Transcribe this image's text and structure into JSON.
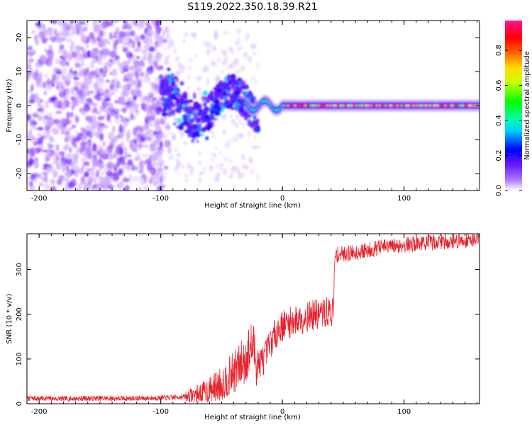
{
  "figure": {
    "title": "S119.2022.350.18.39.R21"
  },
  "chart_data": [
    {
      "type": "heatmap",
      "xlabel": "Height of straight line (km)",
      "ylabel": "Frequency (Hz)",
      "xlim": [
        -210,
        162
      ],
      "ylim": [
        -25,
        25
      ],
      "xticks": [
        -200,
        -100,
        0,
        100
      ],
      "yticks": [
        -20,
        -10,
        0,
        10,
        20
      ],
      "colorbar": {
        "label": "Normalized spectral amplitude",
        "range": [
          0,
          0.97
        ],
        "ticks": [
          "0.0",
          "0.2",
          "0.4",
          "0.6",
          "0.8"
        ],
        "colormap": [
          "#ffffff",
          "#7b2cff",
          "#0000ff",
          "#00ffff",
          "#00ff00",
          "#ffff00",
          "#ff0000",
          "#ff1493"
        ]
      },
      "description_regions": [
        {
          "x_range": [
            -210,
            -100
          ],
          "amplitude": "low",
          "pattern": "scattered noise"
        },
        {
          "x_range": [
            -100,
            -25
          ],
          "amplitude": "medium",
          "pattern": "wandering signal"
        },
        {
          "x_range": [
            0,
            162
          ],
          "amplitude": "high",
          "pattern": "narrow line at 0 Hz"
        }
      ]
    },
    {
      "type": "line",
      "xlabel": "Height of straight line (km)",
      "ylabel": "SNR (10 * v/v)",
      "xlim": [
        -210,
        162
      ],
      "ylim": [
        0,
        380
      ],
      "xticks": [
        -200,
        -100,
        0,
        100
      ],
      "yticks": [
        0,
        100,
        200,
        300
      ],
      "series": [
        {
          "color": "#e8202a",
          "x": [
            -210,
            -200,
            -180,
            -160,
            -140,
            -120,
            -100,
            -90,
            -80,
            -70,
            -60,
            -50,
            -40,
            -30,
            -25,
            -20,
            -15,
            -10,
            -5,
            0,
            10,
            20,
            30,
            40,
            42,
            43,
            44,
            50,
            60,
            70,
            80,
            90,
            100,
            110,
            120,
            130,
            140,
            150,
            160,
            162
          ],
          "y": [
            12,
            12,
            11,
            12,
            12,
            12,
            13,
            14,
            16,
            22,
            30,
            45,
            70,
            100,
            130,
            90,
            100,
            135,
            160,
            175,
            185,
            195,
            200,
            205,
            210,
            320,
            333,
            335,
            338,
            343,
            350,
            352,
            355,
            358,
            360,
            362,
            363,
            365,
            368,
            370
          ]
        }
      ]
    }
  ]
}
